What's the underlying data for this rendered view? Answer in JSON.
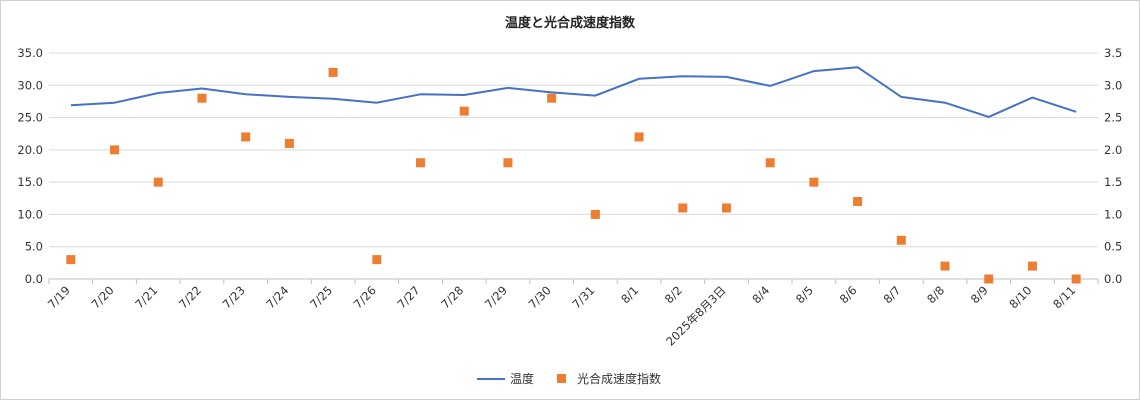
{
  "chart_data": {
    "type": "line",
    "title": "温度と光合成速度指数",
    "categories": [
      "7/19",
      "7/20",
      "7/21",
      "7/22",
      "7/23",
      "7/24",
      "7/25",
      "7/26",
      "7/27",
      "7/28",
      "7/29",
      "7/30",
      "7/31",
      "8/1",
      "8/2",
      "2025年8月3日",
      "8/4",
      "8/5",
      "8/6",
      "8/7",
      "8/8",
      "8/9",
      "8/10",
      "8/11"
    ],
    "series": [
      {
        "name": "温度",
        "kind": "line",
        "axis": "left",
        "color": "#4472C4",
        "values": [
          26.9,
          27.3,
          28.8,
          29.5,
          28.6,
          28.2,
          27.9,
          27.3,
          28.6,
          28.5,
          29.6,
          28.9,
          28.4,
          31.0,
          31.4,
          31.3,
          29.9,
          32.2,
          32.8,
          28.2,
          27.3,
          25.1,
          28.1,
          25.9
        ]
      },
      {
        "name": "光合成速度指数",
        "kind": "scatter",
        "axis": "right",
        "color": "#ED7D31",
        "values": [
          0.3,
          2.0,
          1.5,
          2.8,
          2.2,
          2.1,
          3.2,
          0.3,
          1.8,
          2.6,
          1.8,
          2.8,
          1.0,
          2.2,
          1.1,
          1.1,
          1.8,
          1.5,
          1.2,
          0.6,
          0.2,
          0.0,
          0.2,
          0.0
        ]
      }
    ],
    "y_left": {
      "range": [
        0,
        35
      ],
      "ticks": [
        "0.0",
        "5.0",
        "10.0",
        "15.0",
        "20.0",
        "25.0",
        "30.0",
        "35.0"
      ]
    },
    "y_right": {
      "range": [
        0,
        3.5
      ],
      "ticks": [
        "0.0",
        "0.5",
        "1.0",
        "1.5",
        "2.0",
        "2.5",
        "3.0",
        "3.5"
      ]
    },
    "grid": true,
    "legend_position": "bottom"
  }
}
